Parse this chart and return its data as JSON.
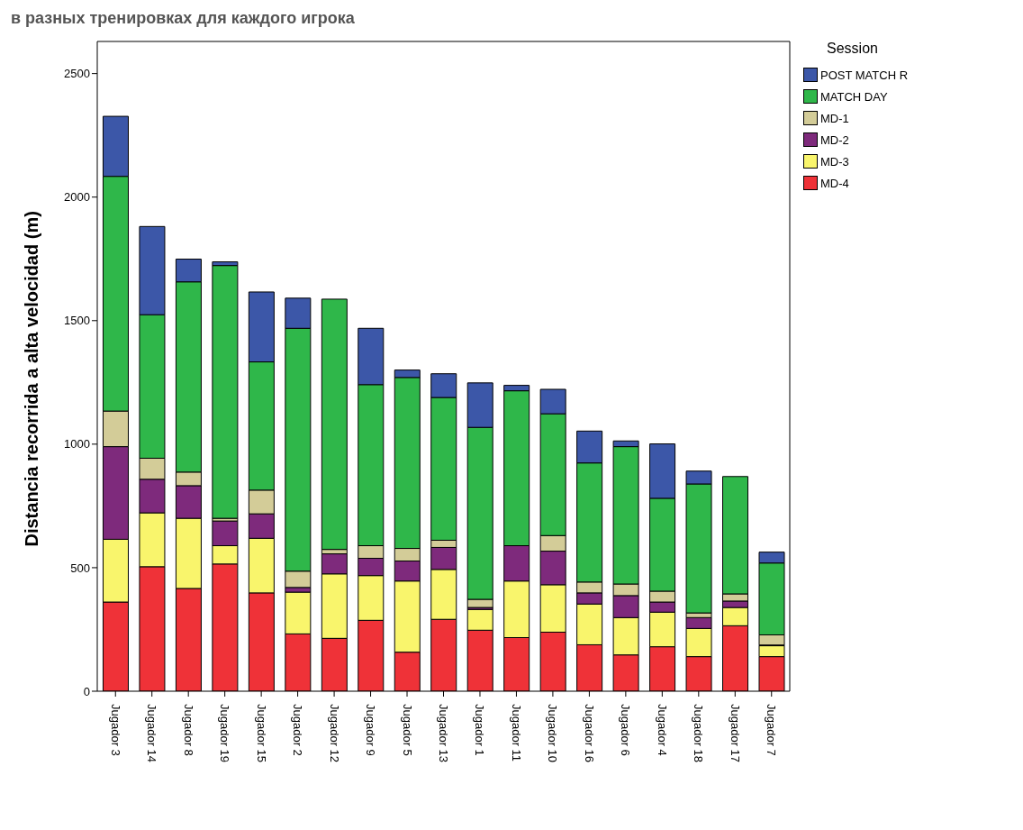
{
  "chart_data": {
    "type": "bar",
    "title": "в разных тренировках для каждого игрока",
    "ylabel": "Distancia recorrida a alta velocidad (m)",
    "legend_title": "Session",
    "stacked": true,
    "legend": "right",
    "grid": false,
    "categories": [
      "Jugador 3",
      "Jugador 14",
      "Jugador 8",
      "Jugador 19",
      "Jugador 15",
      "Jugador 2",
      "Jugador 12",
      "Jugador 9",
      "Jugador 5",
      "Jugador 13",
      "Jugador 1",
      "Jugador 11",
      "Jugador 10",
      "Jugador 16",
      "Jugador 6",
      "Jugador 4",
      "Jugador 18",
      "Jugador 17",
      "Jugador 7"
    ],
    "ylim": [
      0,
      2630
    ],
    "yticks": [
      0,
      500,
      1000,
      1500,
      2000,
      2500
    ],
    "series": [
      {
        "name": "MD-4",
        "color": "#ef3238",
        "values": [
          361,
          504,
          416,
          515,
          398,
          232,
          214,
          287,
          158,
          291,
          247,
          217,
          239,
          188,
          147,
          180,
          140,
          265,
          140
        ]
      },
      {
        "name": "MD-3",
        "color": "#f9f56c",
        "values": [
          254,
          218,
          284,
          74,
          221,
          169,
          261,
          181,
          288,
          202,
          84,
          229,
          192,
          165,
          151,
          140,
          114,
          74,
          44
        ]
      },
      {
        "name": "MD-2",
        "color": "#7e2a7c",
        "values": [
          375,
          136,
          132,
          100,
          99,
          19,
          81,
          70,
          81,
          89,
          8,
          143,
          136,
          45,
          89,
          41,
          44,
          26,
          3
        ]
      },
      {
        "name": "MD-1",
        "color": "#d3cc98",
        "values": [
          144,
          85,
          55,
          11,
          96,
          66,
          18,
          51,
          51,
          29,
          33,
          null,
          63,
          44,
          47,
          44,
          19,
          29,
          41
        ]
      },
      {
        "name": "MATCH DAY",
        "color": "#2fb74a",
        "values": [
          950,
          581,
          770,
          1023,
          519,
          983,
          1013,
          652,
          692,
          578,
          696,
          627,
          493,
          482,
          556,
          376,
          522,
          475,
          291
        ]
      },
      {
        "name": "POST MATCH R",
        "color": "#3c57a8",
        "values": [
          243,
          357,
          92,
          15,
          283,
          122,
          0,
          228,
          30,
          96,
          180,
          22,
          99,
          129,
          23,
          220,
          52,
          0,
          44
        ]
      }
    ]
  }
}
